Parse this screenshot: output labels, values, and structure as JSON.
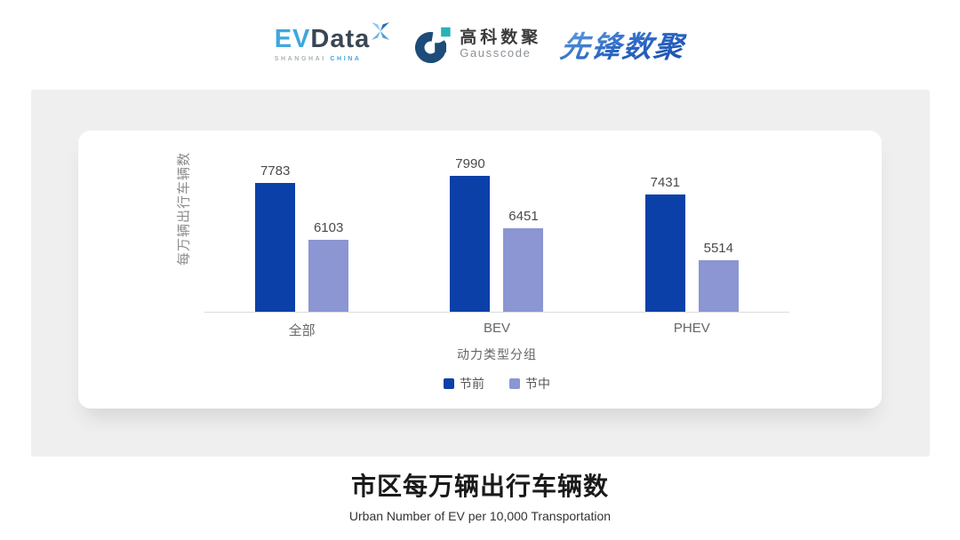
{
  "header": {
    "evdata_logo": {
      "ev": "EV",
      "data": "Data",
      "sub_left": "SHANGHAI",
      "sub_right": "CHINA"
    },
    "gausscode_logo": {
      "cn": "高科数聚",
      "en": "Gausscode"
    },
    "pioneer_logo": {
      "text": "先锋数聚"
    }
  },
  "colors": {
    "panel_bg": "#EFEFEF",
    "evdata_blue": "#3FA7DE",
    "evdata_slate": "#3A4654",
    "gausscode_navy": "#1C4C78",
    "gausscode_teal": "#29B1B8",
    "pioneer_blue": "#2B66C4"
  },
  "chart_data": {
    "type": "bar",
    "title": "市区每万辆出行车辆数",
    "subtitle": "Urban Number of EV per 10,000 Transportation",
    "categories": [
      "全部",
      "BEV",
      "PHEV"
    ],
    "series": [
      {
        "name": "节前",
        "color": "#0B40A8",
        "values": [
          7783,
          7990,
          7431
        ]
      },
      {
        "name": "节中",
        "color": "#8B96D2",
        "values": [
          6103,
          6451,
          5514
        ]
      }
    ],
    "xlabel": "动力类型分组",
    "ylabel": "每万辆出行车辆数",
    "ylim": [
      4000,
      9000
    ],
    "grid": false,
    "legend_position": "bottom",
    "value_labels": true
  }
}
